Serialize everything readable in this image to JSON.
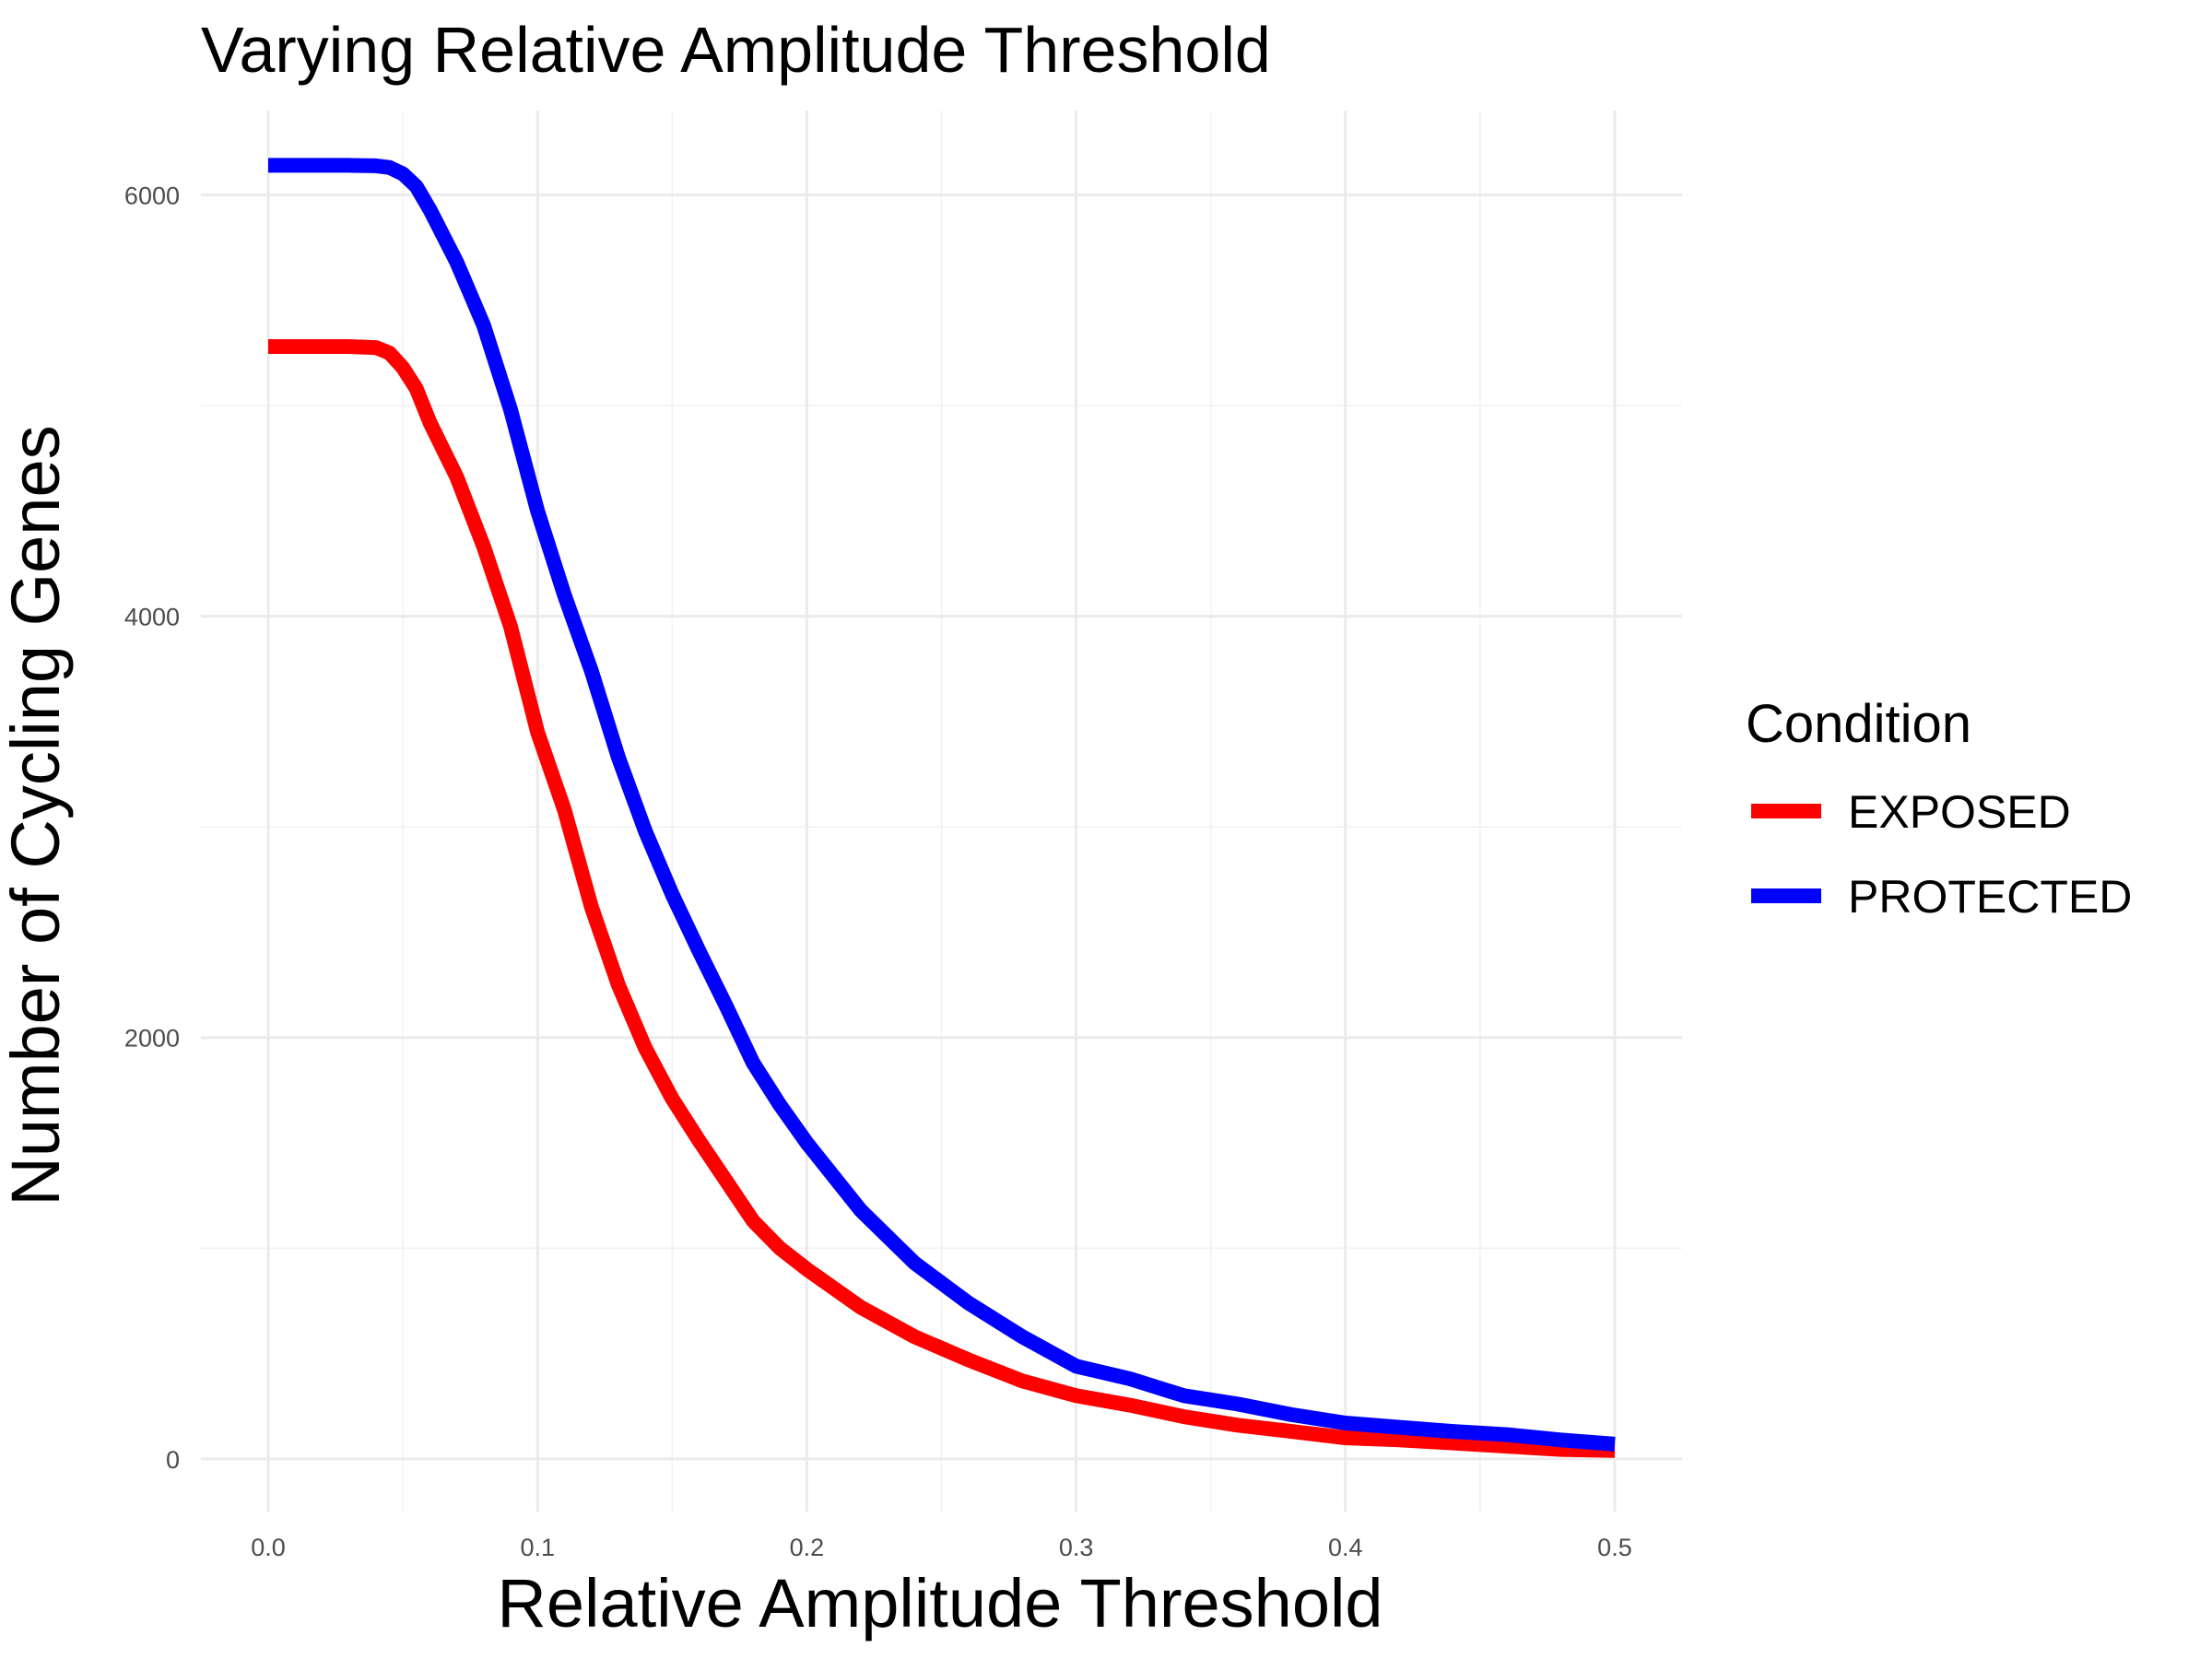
{
  "chart_data": {
    "type": "line",
    "title": "Varying Relative Amplitude Threshold",
    "xlabel": "Relative Amplitude Threshold",
    "ylabel": "Number of Cycling Genes",
    "xlim": [
      -0.025,
      0.525
    ],
    "ylim": [
      -250,
      6400
    ],
    "x_ticks": [
      0.0,
      0.1,
      0.2,
      0.3,
      0.4,
      0.5
    ],
    "x_tick_labels": [
      "0.0",
      "0.1",
      "0.2",
      "0.3",
      "0.4",
      "0.5"
    ],
    "y_ticks": [
      0,
      2000,
      4000,
      6000
    ],
    "y_tick_labels": [
      "0",
      "2000",
      "4000",
      "6000"
    ],
    "grid": true,
    "legend": {
      "title": "Condition",
      "placement": "right"
    },
    "series": [
      {
        "name": "EXPOSED",
        "color": "#ff0000",
        "x": [
          0.0,
          0.01,
          0.02,
          0.03,
          0.04,
          0.045,
          0.05,
          0.055,
          0.06,
          0.07,
          0.08,
          0.09,
          0.1,
          0.11,
          0.12,
          0.13,
          0.14,
          0.15,
          0.16,
          0.17,
          0.18,
          0.19,
          0.2,
          0.22,
          0.24,
          0.26,
          0.28,
          0.3,
          0.32,
          0.34,
          0.36,
          0.38,
          0.4,
          0.42,
          0.44,
          0.46,
          0.48,
          0.5
        ],
        "y": [
          5280,
          5280,
          5280,
          5280,
          5275,
          5250,
          5180,
          5080,
          4920,
          4660,
          4330,
          3950,
          3450,
          3080,
          2620,
          2250,
          1950,
          1710,
          1510,
          1320,
          1130,
          1000,
          900,
          720,
          580,
          470,
          370,
          300,
          255,
          200,
          160,
          130,
          100,
          90,
          75,
          60,
          45,
          40
        ]
      },
      {
        "name": "PROTECTED",
        "color": "#0000ff",
        "x": [
          0.0,
          0.01,
          0.02,
          0.03,
          0.04,
          0.045,
          0.05,
          0.055,
          0.06,
          0.07,
          0.08,
          0.09,
          0.1,
          0.11,
          0.12,
          0.13,
          0.14,
          0.15,
          0.16,
          0.17,
          0.18,
          0.19,
          0.2,
          0.22,
          0.24,
          0.26,
          0.28,
          0.3,
          0.32,
          0.34,
          0.36,
          0.38,
          0.4,
          0.42,
          0.44,
          0.46,
          0.48,
          0.5
        ],
        "y": [
          6140,
          6140,
          6140,
          6140,
          6138,
          6130,
          6100,
          6040,
          5930,
          5680,
          5380,
          4980,
          4500,
          4100,
          3740,
          3330,
          2980,
          2680,
          2410,
          2150,
          1880,
          1680,
          1500,
          1180,
          930,
          740,
          580,
          440,
          380,
          300,
          260,
          210,
          170,
          150,
          130,
          115,
          90,
          70
        ]
      }
    ]
  }
}
